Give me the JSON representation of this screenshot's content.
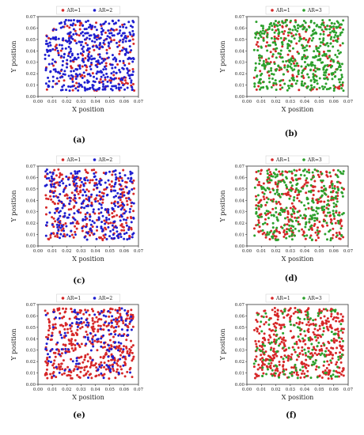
{
  "labels": {
    "x_axis": "X position",
    "y_axis": "Y position"
  },
  "colors": {
    "AR=1": "#d62728",
    "AR=2": "#1f1fd0",
    "AR=3": "#2ca02c"
  },
  "chart_data": [
    {
      "panel": "(a)",
      "type": "scatter",
      "xlabel": "X position",
      "ylabel": "Y position",
      "xlim": [
        0.0,
        0.07
      ],
      "ylim": [
        0.0,
        0.07
      ],
      "x_ticks": [
        "0.00",
        "0.01",
        "0.02",
        "0.03",
        "0.04",
        "0.05",
        "0.06",
        "0.07"
      ],
      "y_ticks": [
        "0.00",
        "0.01",
        "0.02",
        "0.03",
        "0.04",
        "0.05",
        "0.06",
        "0.07"
      ],
      "legend": "top",
      "series": [
        {
          "name": "AR=1",
          "color": "#d62728",
          "count": 150
        },
        {
          "name": "AR=2",
          "color": "#1f1fd0",
          "count": 450
        }
      ],
      "note": "points spread uniformly over x,y in [0.005, 0.067]"
    },
    {
      "panel": "(b)",
      "type": "scatter",
      "xlabel": "X position",
      "ylabel": "Y position",
      "xlim": [
        0.0,
        0.07
      ],
      "ylim": [
        0.0,
        0.07
      ],
      "x_ticks": [
        "0.00",
        "0.01",
        "0.02",
        "0.03",
        "0.04",
        "0.05",
        "0.06",
        "0.07"
      ],
      "y_ticks": [
        "0.00",
        "0.01",
        "0.02",
        "0.03",
        "0.04",
        "0.05",
        "0.06",
        "0.07"
      ],
      "legend": "top",
      "series": [
        {
          "name": "AR=1",
          "color": "#d62728",
          "count": 150
        },
        {
          "name": "AR=3",
          "color": "#2ca02c",
          "count": 450
        }
      ]
    },
    {
      "panel": "(c)",
      "type": "scatter",
      "xlabel": "X position",
      "ylabel": "Y position",
      "xlim": [
        0.0,
        0.07
      ],
      "ylim": [
        0.0,
        0.07
      ],
      "x_ticks": [
        "0.00",
        "0.01",
        "0.02",
        "0.03",
        "0.04",
        "0.05",
        "0.06",
        "0.07"
      ],
      "y_ticks": [
        "0.00",
        "0.01",
        "0.02",
        "0.03",
        "0.04",
        "0.05",
        "0.06",
        "0.07"
      ],
      "legend": "top",
      "series": [
        {
          "name": "AR=1",
          "color": "#d62728",
          "count": 300
        },
        {
          "name": "AR=2",
          "color": "#1f1fd0",
          "count": 300
        }
      ]
    },
    {
      "panel": "(d)",
      "type": "scatter",
      "xlabel": "X position",
      "ylabel": "Y position",
      "xlim": [
        0.0,
        0.07
      ],
      "ylim": [
        0.0,
        0.07
      ],
      "x_ticks": [
        "0.00",
        "0.01",
        "0.02",
        "0.03",
        "0.04",
        "0.05",
        "0.06",
        "0.07"
      ],
      "y_ticks": [
        "0.00",
        "0.01",
        "0.02",
        "0.03",
        "0.04",
        "0.05",
        "0.06",
        "0.07"
      ],
      "legend": "top",
      "series": [
        {
          "name": "AR=1",
          "color": "#d62728",
          "count": 300
        },
        {
          "name": "AR=3",
          "color": "#2ca02c",
          "count": 300
        }
      ]
    },
    {
      "panel": "(e)",
      "type": "scatter",
      "xlabel": "X position",
      "ylabel": "Y position",
      "xlim": [
        0.0,
        0.07
      ],
      "ylim": [
        0.0,
        0.07
      ],
      "x_ticks": [
        "0.00",
        "0.01",
        "0.02",
        "0.03",
        "0.04",
        "0.05",
        "0.06",
        "0.07"
      ],
      "y_ticks": [
        "0.00",
        "0.01",
        "0.02",
        "0.03",
        "0.04",
        "0.05",
        "0.06",
        "0.07"
      ],
      "legend": "top",
      "series": [
        {
          "name": "AR=1",
          "color": "#d62728",
          "count": 450
        },
        {
          "name": "AR=2",
          "color": "#1f1fd0",
          "count": 150
        }
      ]
    },
    {
      "panel": "(f)",
      "type": "scatter",
      "xlabel": "X position",
      "ylabel": "Y position",
      "xlim": [
        0.0,
        0.07
      ],
      "ylim": [
        0.0,
        0.07
      ],
      "x_ticks": [
        "0.00",
        "0.01",
        "0.02",
        "0.03",
        "0.04",
        "0.05",
        "0.06",
        "0.07"
      ],
      "y_ticks": [
        "0.00",
        "0.01",
        "0.02",
        "0.03",
        "0.04",
        "0.05",
        "0.06",
        "0.07"
      ],
      "legend": "top",
      "series": [
        {
          "name": "AR=1",
          "color": "#d62728",
          "count": 450
        },
        {
          "name": "AR=3",
          "color": "#2ca02c",
          "count": 150
        }
      ]
    }
  ]
}
